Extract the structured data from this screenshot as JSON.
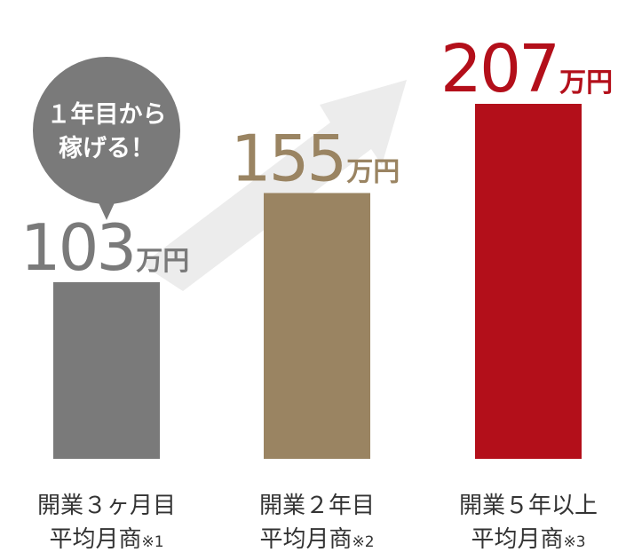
{
  "chart_data": {
    "type": "bar",
    "categories": [
      {
        "line1": "開業３ヶ月目",
        "line2": "平均月商",
        "note": "※1"
      },
      {
        "line1": "開業２年目",
        "line2": "平均月商",
        "note": "※2"
      },
      {
        "line1": "開業５年以上",
        "line2": "平均月商",
        "note": "※3"
      }
    ],
    "values": [
      103,
      155,
      207
    ],
    "value_labels": [
      "103",
      "155",
      "207"
    ],
    "unit": "万円",
    "colors": [
      "#7a7a7a",
      "#9a8462",
      "#b30f1a"
    ],
    "ylim": [
      0,
      207
    ],
    "grid": false,
    "legend": "none"
  },
  "bubble": {
    "line1": "１年目から",
    "line2": "稼げる！",
    "color": "#7a7a7a"
  },
  "arrow_color": "#ececec"
}
